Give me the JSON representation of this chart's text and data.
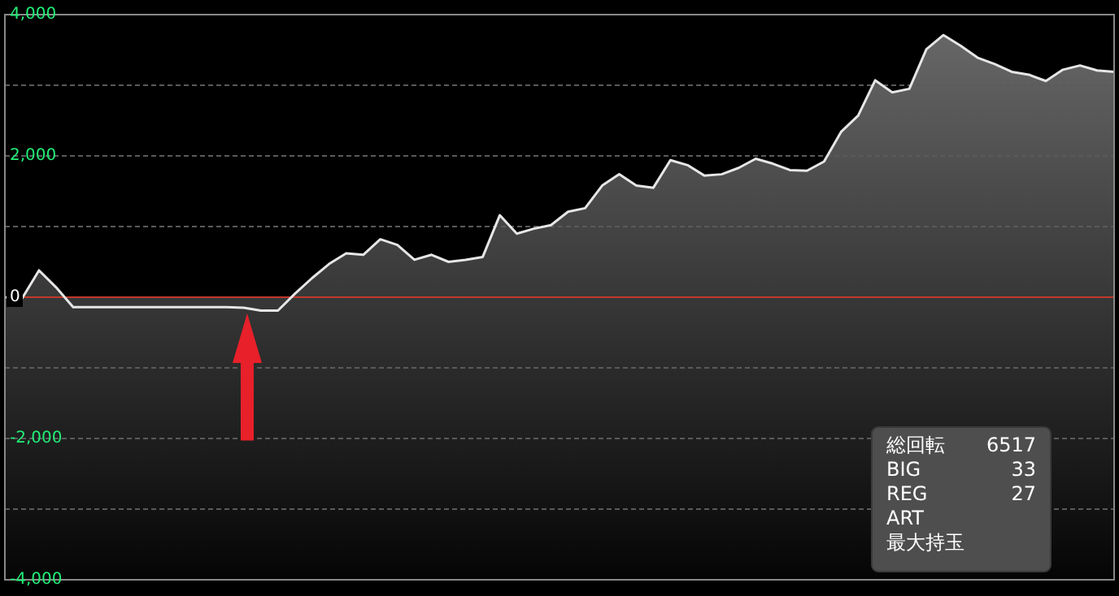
{
  "chart_data": {
    "type": "area",
    "categories": [
      null,
      null,
      null,
      null,
      null,
      null,
      null,
      null,
      null,
      null,
      null,
      null,
      null,
      null,
      null,
      null,
      null,
      null,
      null,
      null,
      null,
      null,
      null,
      null,
      null,
      null,
      null,
      null,
      null,
      null,
      null,
      null,
      null,
      null,
      null,
      null,
      null,
      null,
      null,
      null,
      null,
      null,
      null,
      null,
      null,
      null,
      null,
      null,
      null,
      null,
      null,
      null,
      null,
      null,
      null,
      null,
      null,
      null,
      null,
      null,
      null,
      null,
      null,
      null,
      null,
      null
    ],
    "series": [
      {
        "color": "#e6e6e6",
        "values": [
          0,
          -20,
          380,
          140,
          -140,
          -140,
          -140,
          -140,
          -140,
          -140,
          -140,
          -140,
          -140,
          -140,
          -150,
          -190,
          -190,
          50,
          270,
          470,
          620,
          600,
          820,
          740,
          530,
          600,
          500,
          530,
          570,
          1160,
          900,
          970,
          1020,
          1210,
          1260,
          1580,
          1740,
          1580,
          1550,
          1940,
          1870,
          1720,
          1740,
          1830,
          1960,
          1890,
          1800,
          1790,
          1920,
          2340,
          2570,
          3070,
          2900,
          2950,
          3510,
          3710,
          3560,
          3390,
          3300,
          3190,
          3150,
          3060,
          3220,
          3280,
          3210,
          3190
        ]
      }
    ],
    "ylim": [
      -4000,
      4000
    ],
    "yticks": [
      {
        "value": -4000,
        "label": "-4,000"
      },
      {
        "value": -3000,
        "label": null
      },
      {
        "value": -2000,
        "label": "-2,000"
      },
      {
        "value": -1000,
        "label": null
      },
      0,
      {
        "value": 1000,
        "label": null
      },
      {
        "value": 2000,
        "label": "2,000"
      },
      {
        "value": 3000,
        "label": null
      },
      {
        "value": 4000,
        "label": "4,000"
      }
    ],
    "grid": "y",
    "ref_lines": [
      {
        "axis": "y",
        "value": 0,
        "color": "#c0392b"
      }
    ],
    "annotations": [
      "総回転 6517",
      "BIG 33",
      "REG 27",
      "ART",
      "最大持玉"
    ]
  }
}
